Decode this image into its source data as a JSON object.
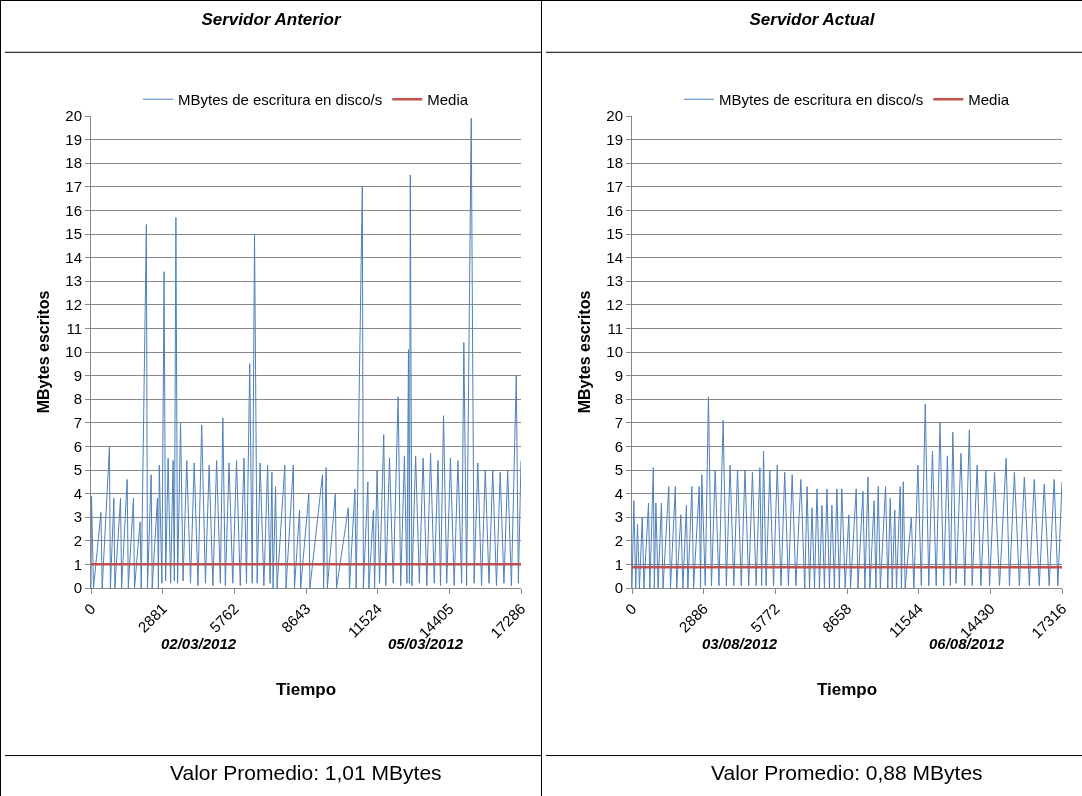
{
  "chart_data": [
    {
      "type": "line",
      "title": "Servidor Anterior",
      "xlabel": "Tiempo",
      "ylabel": "MBytes escritos",
      "xlim": [
        0,
        17286
      ],
      "xticks": [
        0,
        2881,
        5762,
        8643,
        11524,
        14405,
        17286
      ],
      "ylim": [
        0,
        20
      ],
      "yticks": [
        0,
        1,
        2,
        3,
        4,
        5,
        6,
        7,
        8,
        9,
        10,
        11,
        12,
        13,
        14,
        15,
        16,
        17,
        18,
        19,
        20
      ],
      "grid": "y",
      "legend": "top",
      "annotations": [
        "02/03/2012",
        "05/03/2012",
        "Valor Promedio: 1,01 MBytes"
      ],
      "series": [
        {
          "name": "MBytes de escritura en disco/s",
          "color": "#4f81bd",
          "x": [
            0,
            20,
            100,
            400,
            450,
            742,
            780,
            920,
            960,
            1187,
            1230,
            1454,
            1500,
            1707,
            1750,
            1974,
            2020,
            2226,
            2270,
            2419,
            2460,
            2671,
            2710,
            2745,
            2850,
            2938,
            3000,
            3100,
            3200,
            3300,
            3350,
            3413,
            3480,
            3600,
            3700,
            3850,
            4000,
            4150,
            4300,
            4450,
            4600,
            4750,
            4900,
            5050,
            5200,
            5300,
            5400,
            5550,
            5700,
            5850,
            6000,
            6150,
            6250,
            6381,
            6480,
            6574,
            6680,
            6800,
            6950,
            7100,
            7200,
            7272,
            7320,
            7420,
            7480,
            7791,
            7840,
            8132,
            8180,
            8385,
            8430,
            8756,
            8800,
            9305,
            9350,
            9453,
            9500,
            9824,
            9870,
            10344,
            10390,
            10611,
            10660,
            10907,
            10950,
            11130,
            11170,
            11353,
            11400,
            11501,
            11600,
            11768,
            11850,
            12000,
            12150,
            12347,
            12450,
            12600,
            12700,
            12762,
            12800,
            12836,
            12900,
            13050,
            13200,
            13350,
            13500,
            13650,
            13800,
            13950,
            14050,
            14172,
            14300,
            14450,
            14600,
            14750,
            14900,
            14988,
            15100,
            15285,
            15400,
            15550,
            15700,
            15850,
            16000,
            16150,
            16300,
            16450,
            16600,
            16750,
            16900,
            17096,
            17180,
            17286
          ],
          "values": [
            0,
            3.9,
            0,
            3.2,
            0,
            6.0,
            0,
            3.8,
            0,
            3.8,
            0,
            4.6,
            0,
            3.8,
            0,
            2.8,
            0,
            15.4,
            0,
            4.8,
            0,
            3.8,
            0,
            5.2,
            0.2,
            13.4,
            0.3,
            5.5,
            0.2,
            5.4,
            0.3,
            15.7,
            0.2,
            7.0,
            0.3,
            5.4,
            0.2,
            5.3,
            0.1,
            6.9,
            0.2,
            5.2,
            0.1,
            5.4,
            0.2,
            7.2,
            0.1,
            5.3,
            0.2,
            5.4,
            0.1,
            5.5,
            0.2,
            9.5,
            0.2,
            15.0,
            0.2,
            5.3,
            0.1,
            5.2,
            0.2,
            4.9,
            0,
            4.3,
            0,
            5.2,
            0,
            5.2,
            0,
            3.3,
            0,
            4.0,
            0,
            4.8,
            0,
            5.1,
            0,
            4.0,
            0,
            3.4,
            0,
            4.2,
            0,
            17.0,
            0,
            4.5,
            0,
            3.3,
            0,
            5.0,
            0.2,
            6.5,
            0.1,
            5.5,
            0.2,
            8.1,
            0.1,
            5.6,
            0.2,
            10.1,
            0.2,
            17.5,
            0.1,
            5.6,
            0.2,
            5.5,
            0.1,
            5.7,
            0.2,
            5.4,
            0.1,
            7.3,
            0.2,
            5.5,
            0.1,
            5.4,
            0.2,
            10.4,
            0.1,
            19.9,
            0.2,
            5.3,
            0.1,
            5.0,
            0.2,
            5.0,
            0.1,
            4.9,
            0.2,
            5.0,
            0.1,
            9.0,
            0.2,
            5.4
          ]
        },
        {
          "name": "Media",
          "color": "#c0504d",
          "x": [
            0,
            17286
          ],
          "values": [
            1.01,
            1.01
          ]
        }
      ]
    },
    {
      "type": "line",
      "title": "Servidor Actual",
      "xlabel": "Tiempo",
      "ylabel": "MBytes escritos",
      "xlim": [
        0,
        17316
      ],
      "xticks": [
        0,
        2886,
        5772,
        8658,
        11544,
        14430,
        17316
      ],
      "ylim": [
        0,
        20
      ],
      "yticks": [
        0,
        1,
        2,
        3,
        4,
        5,
        6,
        7,
        8,
        9,
        10,
        11,
        12,
        13,
        14,
        15,
        16,
        17,
        18,
        19,
        20
      ],
      "grid": "y",
      "legend": "top",
      "annotations": [
        "03/08/2012",
        "06/08/2012",
        "Valor Promedio: 0,88 MBytes"
      ],
      "series": [
        {
          "name": "MBytes de escritura en disco/s",
          "color": "#4f81bd",
          "x": [
            0,
            74,
            150,
            222,
            300,
            414,
            480,
            666,
            720,
            858,
            900,
            962,
            1050,
            1184,
            1250,
            1480,
            1550,
            1746,
            1800,
            1968,
            2050,
            2190,
            2250,
            2412,
            2480,
            2708,
            2760,
            2812,
            2950,
            3078,
            3200,
            3350,
            3500,
            3670,
            3800,
            3950,
            4100,
            4250,
            4400,
            4550,
            4700,
            4850,
            5000,
            5150,
            5220,
            5298,
            5400,
            5550,
            5700,
            5850,
            6000,
            6150,
            6300,
            6450,
            6600,
            6800,
            6956,
            7050,
            7150,
            7250,
            7350,
            7450,
            7550,
            7650,
            7750,
            7850,
            7950,
            8050,
            8150,
            8250,
            8350,
            8450,
            8584,
            8732,
            8800,
            9028,
            9100,
            9300,
            9380,
            9502,
            9580,
            9750,
            9820,
            9916,
            10000,
            10212,
            10300,
            10400,
            10480,
            10582,
            10650,
            10800,
            10850,
            10924,
            11000,
            11248,
            11350,
            11514,
            11650,
            11810,
            11950,
            12100,
            12250,
            12402,
            12550,
            12700,
            12820,
            12920,
            13050,
            13250,
            13400,
            13586,
            13700,
            13900,
            14050,
            14250,
            14400,
            14600,
            14800,
            15066,
            15200,
            15400,
            15600,
            15800,
            16000,
            16200,
            16400,
            16600,
            16800,
            17000,
            17150,
            17316
          ],
          "values": [
            0,
            3.7,
            0,
            2.7,
            0,
            3.0,
            0,
            3.6,
            0,
            5.1,
            0,
            3.6,
            0,
            3.6,
            0,
            4.3,
            0,
            4.3,
            0,
            3.1,
            0,
            3.5,
            0,
            4.3,
            0,
            4.3,
            0,
            4.8,
            0.1,
            8.1,
            0.1,
            5.0,
            0.1,
            7.1,
            0.1,
            5.2,
            0.1,
            5.0,
            0.1,
            5.0,
            0.1,
            4.9,
            0.1,
            5.1,
            0.1,
            5.8,
            0.1,
            5.0,
            0.1,
            5.2,
            0.1,
            4.9,
            0.1,
            4.8,
            0.1,
            4.6,
            0,
            4.3,
            0,
            3.4,
            0,
            4.2,
            0,
            3.5,
            0,
            4.2,
            0,
            3.5,
            0,
            4.2,
            0,
            4.2,
            0,
            3.1,
            0,
            4.2,
            0,
            4.1,
            0,
            4.7,
            0,
            3.7,
            0,
            4.3,
            0,
            4.3,
            0,
            3.8,
            0,
            3.3,
            0,
            4.3,
            0,
            4.5,
            0,
            3.0,
            0,
            5.2,
            0.1,
            7.8,
            0.1,
            5.8,
            0.1,
            7.0,
            0.1,
            5.6,
            0.1,
            6.6,
            0.2,
            5.7,
            0.1,
            6.7,
            0.1,
            5.2,
            0.1,
            5.0,
            0.1,
            4.9,
            0.1,
            5.5,
            0.1,
            4.9,
            0.1,
            4.7,
            0.1,
            4.6,
            0.1,
            4.4,
            0.1,
            4.6,
            0.1,
            4.5
          ]
        },
        {
          "name": "Media",
          "color": "#c0504d",
          "x": [
            0,
            17316
          ],
          "values": [
            0.88,
            0.88
          ]
        }
      ]
    }
  ]
}
